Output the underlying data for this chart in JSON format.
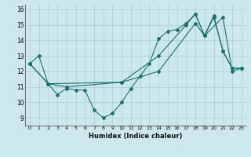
{
  "title": "",
  "xlabel": "Humidex (Indice chaleur)",
  "bg_color": "#cce8ec",
  "line_color": "#1a7070",
  "grid_color": "#aacdd4",
  "xlim": [
    -0.5,
    23.5
  ],
  "ylim": [
    8.5,
    16.3
  ],
  "xticks": [
    0,
    1,
    2,
    3,
    4,
    5,
    6,
    7,
    8,
    9,
    10,
    11,
    12,
    13,
    14,
    15,
    16,
    17,
    18,
    19,
    20,
    21,
    22,
    23
  ],
  "yticks": [
    9,
    10,
    11,
    12,
    13,
    14,
    15,
    16
  ],
  "line1_x": [
    0,
    1,
    2,
    3,
    4,
    5,
    6,
    7,
    8,
    9,
    10,
    11,
    12,
    13,
    14,
    15,
    16,
    17,
    18,
    19,
    20,
    21,
    22,
    23
  ],
  "line1_y": [
    12.5,
    13.0,
    11.2,
    10.5,
    10.9,
    10.8,
    10.8,
    9.5,
    9.0,
    9.3,
    10.0,
    10.9,
    11.7,
    12.5,
    14.1,
    14.6,
    14.7,
    15.1,
    15.7,
    14.3,
    15.5,
    13.3,
    12.2,
    12.2
  ],
  "line2_x": [
    0,
    2,
    4,
    10,
    14,
    17,
    18,
    19,
    20,
    21,
    22,
    23
  ],
  "line2_y": [
    12.5,
    11.2,
    11.0,
    11.3,
    13.0,
    15.0,
    15.7,
    14.3,
    15.6,
    13.3,
    12.2,
    12.2
  ],
  "line3_x": [
    0,
    2,
    10,
    14,
    18,
    19,
    21,
    22,
    23
  ],
  "line3_y": [
    12.5,
    11.2,
    11.3,
    12.0,
    15.1,
    14.3,
    15.5,
    12.0,
    12.2
  ]
}
